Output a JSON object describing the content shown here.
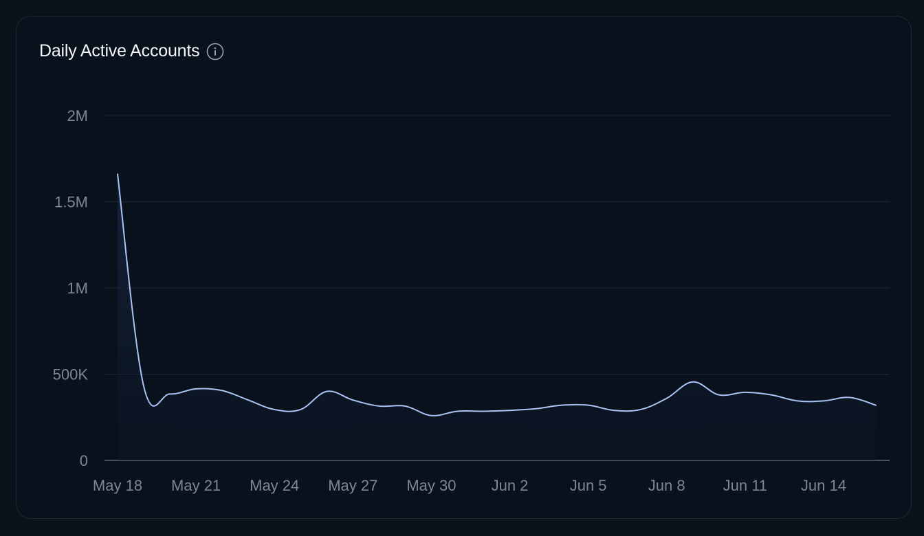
{
  "card": {
    "title": "Daily Active Accounts",
    "info_icon": "info-circle-icon"
  },
  "colors": {
    "background": "#0b1219",
    "card": "#08111c",
    "line": "#a9c4f5",
    "grid": "#1c2733",
    "axis_text": "#7d8794"
  },
  "chart_data": {
    "type": "area",
    "title": "Daily Active Accounts",
    "xlabel": "",
    "ylabel": "",
    "ylim": [
      0,
      2000000
    ],
    "y_ticks": [
      0,
      500000,
      1000000,
      1500000,
      2000000
    ],
    "y_tick_labels": [
      "0",
      "500K",
      "1M",
      "1.5M",
      "2M"
    ],
    "x_tick_labels": [
      "May 18",
      "May 21",
      "May 24",
      "May 27",
      "May 30",
      "Jun 2",
      "Jun 5",
      "Jun 8",
      "Jun 11",
      "Jun 14"
    ],
    "x_tick_indices": [
      0,
      3,
      6,
      9,
      12,
      15,
      18,
      21,
      24,
      27
    ],
    "grid": true,
    "legend": "none",
    "series": [
      {
        "x": [
          "May 18",
          "May 19",
          "May 20",
          "May 21",
          "May 22",
          "May 23",
          "May 24",
          "May 25",
          "May 26",
          "May 27",
          "May 28",
          "May 29",
          "May 30",
          "May 31",
          "Jun 1",
          "Jun 2",
          "Jun 3",
          "Jun 4",
          "Jun 5",
          "Jun 6",
          "Jun 7",
          "Jun 8",
          "Jun 9",
          "Jun 10",
          "Jun 11",
          "Jun 12",
          "Jun 13",
          "Jun 14",
          "Jun 15",
          "Jun 16"
        ],
        "values": [
          1660000,
          430000,
          385000,
          415000,
          405000,
          350000,
          295000,
          295000,
          400000,
          350000,
          315000,
          315000,
          260000,
          285000,
          285000,
          290000,
          300000,
          320000,
          320000,
          290000,
          295000,
          360000,
          455000,
          380000,
          395000,
          380000,
          345000,
          345000,
          365000,
          320000
        ]
      }
    ]
  }
}
